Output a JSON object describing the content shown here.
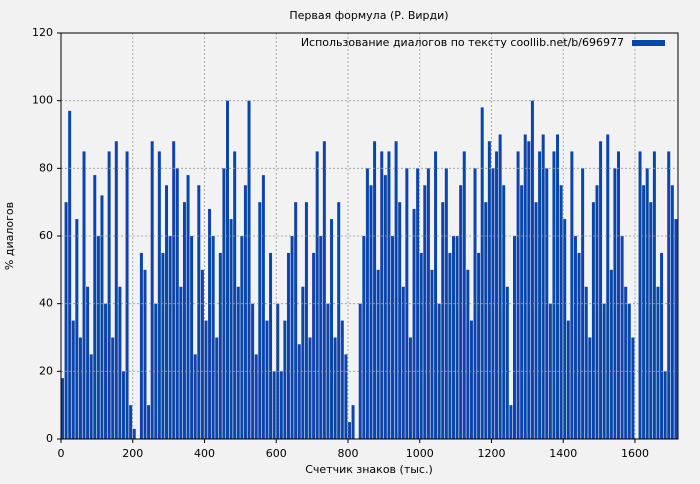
{
  "chart_data": {
    "type": "bar",
    "title": "Первая формула (Р. Вирди)",
    "xlabel": "Счетчик знаков (тыс.)",
    "ylabel": "% диалогов",
    "series": [
      {
        "name": "Использование диалогов по тексту coollib.net/b/696977",
        "color": "#0b44aa",
        "values": [
          18,
          70,
          97,
          35,
          65,
          30,
          85,
          45,
          25,
          78,
          60,
          72,
          40,
          85,
          30,
          88,
          45,
          20,
          85,
          10,
          3,
          0,
          55,
          50,
          10,
          88,
          40,
          85,
          55,
          75,
          60,
          88,
          80,
          45,
          70,
          78,
          60,
          25,
          75,
          50,
          35,
          68,
          60,
          30,
          55,
          80,
          100,
          65,
          85,
          45,
          60,
          75,
          100,
          40,
          25,
          70,
          78,
          35,
          55,
          20,
          40,
          20,
          35,
          55,
          60,
          70,
          28,
          45,
          70,
          30,
          55,
          85,
          60,
          88,
          40,
          65,
          30,
          70,
          35,
          25,
          5,
          10,
          0,
          40,
          60,
          80,
          75,
          88,
          50,
          85,
          78,
          85,
          60,
          88,
          70,
          45,
          80,
          30,
          68,
          80,
          55,
          75,
          80,
          50,
          85,
          40,
          70,
          80,
          55,
          60,
          60,
          75,
          85,
          50,
          35,
          80,
          55,
          98,
          70,
          88,
          80,
          85,
          90,
          75,
          45,
          10,
          60,
          85,
          75,
          90,
          88,
          100,
          70,
          85,
          90,
          80,
          40,
          85,
          90,
          75,
          65,
          35,
          85,
          60,
          55,
          80,
          45,
          30,
          70,
          75,
          88,
          40,
          90,
          50,
          80,
          85,
          60,
          45,
          40,
          30,
          0,
          85,
          75,
          80,
          70,
          85,
          45,
          55,
          20,
          85,
          75,
          65
        ]
      }
    ],
    "x": [
      0,
      10,
      20,
      30,
      40,
      50,
      60,
      70,
      80,
      90,
      100,
      110,
      120,
      130,
      140,
      150,
      160,
      170,
      180,
      190,
      200,
      210,
      220,
      230,
      240,
      250,
      260,
      270,
      280,
      290,
      300,
      310,
      320,
      330,
      340,
      350,
      360,
      370,
      380,
      390,
      400,
      410,
      420,
      430,
      440,
      450,
      460,
      470,
      480,
      490,
      500,
      510,
      520,
      530,
      540,
      550,
      560,
      570,
      580,
      590,
      600,
      610,
      620,
      630,
      640,
      650,
      660,
      670,
      680,
      690,
      700,
      710,
      720,
      730,
      740,
      750,
      760,
      770,
      780,
      790,
      800,
      810,
      820,
      830,
      840,
      850,
      860,
      870,
      880,
      890,
      900,
      910,
      920,
      930,
      940,
      950,
      960,
      970,
      980,
      990,
      1000,
      1010,
      1020,
      1030,
      1040,
      1050,
      1060,
      1070,
      1080,
      1090,
      1100,
      1110,
      1120,
      1130,
      1140,
      1150,
      1160,
      1170,
      1180,
      1190,
      1200,
      1210,
      1220,
      1230,
      1240,
      1250,
      1260,
      1270,
      1280,
      1290,
      1300,
      1310,
      1320,
      1330,
      1340,
      1350,
      1360,
      1370,
      1380,
      1390,
      1400,
      1410,
      1420,
      1430,
      1440,
      1450,
      1460,
      1470,
      1480,
      1490,
      1500,
      1510,
      1520,
      1530,
      1540,
      1550,
      1560,
      1570,
      1580,
      1590,
      1600,
      1610,
      1620,
      1630,
      1640,
      1650,
      1660,
      1670,
      1680,
      1690,
      1700,
      1710
    ],
    "xlim": [
      0,
      1720
    ],
    "xticks": [
      0,
      200,
      400,
      600,
      800,
      1000,
      1200,
      1400,
      1600
    ],
    "ylim": [
      0,
      120
    ],
    "yticks": [
      0,
      20,
      40,
      60,
      80,
      100,
      120
    ],
    "grid": true,
    "legend": "upper right"
  }
}
